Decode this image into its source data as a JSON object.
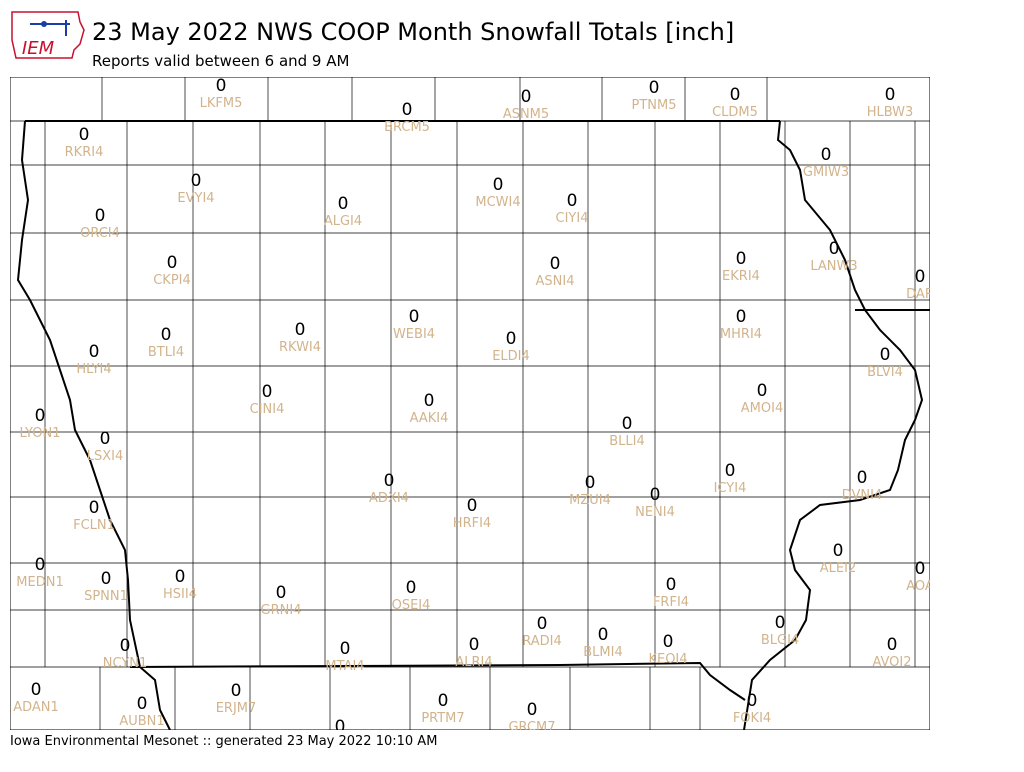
{
  "header": {
    "logo": "IEM",
    "title": "23 May 2022 NWS COOP Month Snowfall Totals [inch]",
    "subtitle": "Reports valid between 6 and 9 AM"
  },
  "footer": "Iowa Environmental Mesonet :: generated 23 May 2022 10:10 AM",
  "stations": [
    {
      "id": "LKFM5",
      "value": 0
    },
    {
      "id": "BRCM5",
      "value": 0
    },
    {
      "id": "ASNM5",
      "value": 0
    },
    {
      "id": "PTNM5",
      "value": 0
    },
    {
      "id": "CLDM5",
      "value": 0
    },
    {
      "id": "HLBW3",
      "value": 0
    },
    {
      "id": "RKRI4",
      "value": 0
    },
    {
      "id": "GMIW3",
      "value": 0
    },
    {
      "id": "EVYI4",
      "value": 0
    },
    {
      "id": "MCWI4",
      "value": 0
    },
    {
      "id": "CIYI4",
      "value": 0
    },
    {
      "id": "ALGI4",
      "value": 0
    },
    {
      "id": "ORCI4",
      "value": 0
    },
    {
      "id": "LANW3",
      "value": 0
    },
    {
      "id": "EKRI4",
      "value": 0
    },
    {
      "id": "DAR",
      "value": 0
    },
    {
      "id": "CKPI4",
      "value": 0
    },
    {
      "id": "ASNI4",
      "value": 0
    },
    {
      "id": "RKWI4",
      "value": 0
    },
    {
      "id": "WEBI4",
      "value": 0
    },
    {
      "id": "MHRI4",
      "value": 0
    },
    {
      "id": "BTLI4",
      "value": 0
    },
    {
      "id": "ELDI4",
      "value": 0
    },
    {
      "id": "HLYI4",
      "value": 0
    },
    {
      "id": "BLVI4",
      "value": 0
    },
    {
      "id": "CINI4",
      "value": 0
    },
    {
      "id": "AMOI4",
      "value": 0
    },
    {
      "id": "AAKI4",
      "value": 0
    },
    {
      "id": "LYON1",
      "value": 0
    },
    {
      "id": "BLLI4",
      "value": 0
    },
    {
      "id": "LSXI4",
      "value": 0
    },
    {
      "id": "ICYI4",
      "value": 0
    },
    {
      "id": "DVNI4",
      "value": 0
    },
    {
      "id": "ADXI4",
      "value": 0
    },
    {
      "id": "MZUI4",
      "value": 0
    },
    {
      "id": "NENI4",
      "value": 0
    },
    {
      "id": "HRFI4",
      "value": 0
    },
    {
      "id": "FCLN1",
      "value": 0
    },
    {
      "id": "ALEI2",
      "value": 0
    },
    {
      "id": "MEDN1",
      "value": 0
    },
    {
      "id": "AOA",
      "value": 0
    },
    {
      "id": "SPNN1",
      "value": 0
    },
    {
      "id": "HSII4",
      "value": 0
    },
    {
      "id": "OSEI4",
      "value": 0
    },
    {
      "id": "FRFI4",
      "value": 0
    },
    {
      "id": "GRNI4",
      "value": 0
    },
    {
      "id": "BLGI4",
      "value": 0
    },
    {
      "id": "RADI4",
      "value": 0
    },
    {
      "id": "BLMI4",
      "value": 0
    },
    {
      "id": "ALRI4",
      "value": 0
    },
    {
      "id": "KEOI4",
      "value": 0
    },
    {
      "id": "NCYN1",
      "value": 0
    },
    {
      "id": "MTAI4",
      "value": 0
    },
    {
      "id": "AVOI2",
      "value": 0
    },
    {
      "id": "ADAN1",
      "value": 0
    },
    {
      "id": "ERJM7",
      "value": 0
    },
    {
      "id": "AUBN1",
      "value": 0
    },
    {
      "id": "PRTM7",
      "value": 0
    },
    {
      "id": "FOKI4",
      "value": 0
    },
    {
      "id": "GRCM7",
      "value": 0
    },
    {
      "value": 0
    }
  ]
}
